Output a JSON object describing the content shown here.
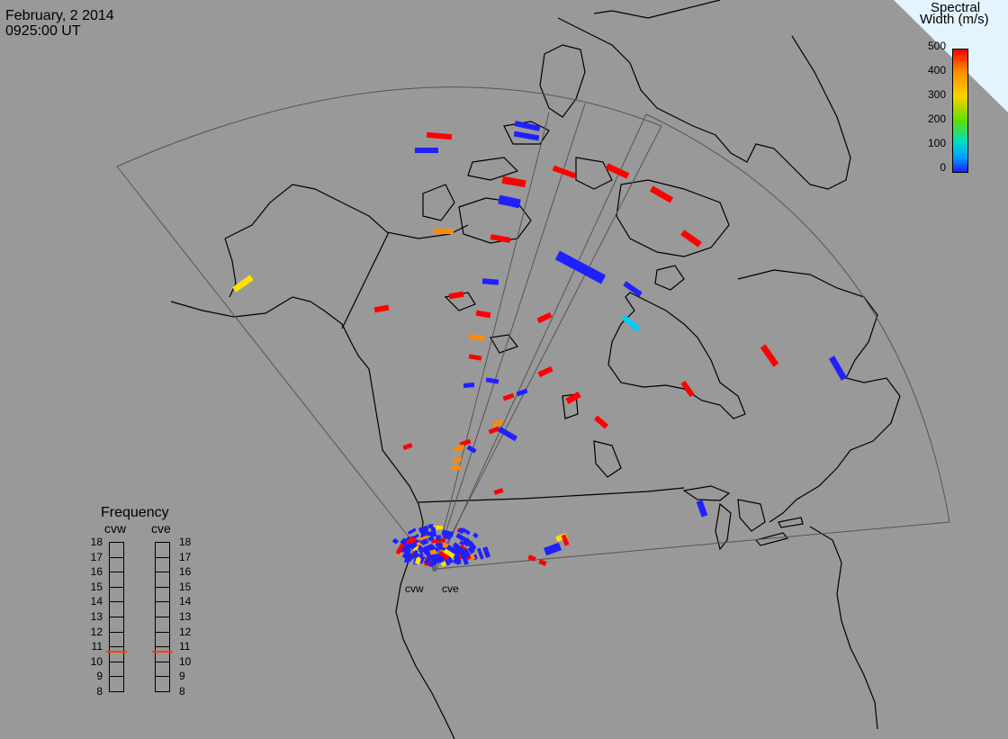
{
  "header": {
    "date": "February, 2 2014",
    "time": "0925:00 UT"
  },
  "colorbar": {
    "title_line1": "Spectral",
    "title_line2": "Width (m/s)",
    "ticks": [
      "500",
      "400",
      "300",
      "200",
      "100",
      "0"
    ],
    "range": [
      0,
      500
    ],
    "colors": [
      "#ff0000",
      "#ff8c00",
      "#ffd000",
      "#80e000",
      "#00d060",
      "#00d0ff",
      "#0040ff",
      "#2020ff"
    ]
  },
  "frequency_panel": {
    "title": "Frequency",
    "radars": [
      "cvw",
      "cve"
    ],
    "ticks": [
      "18",
      "17",
      "16",
      "15",
      "14",
      "13",
      "12",
      "11",
      "10",
      "9",
      "8"
    ],
    "marker_value_mhz": 10.8,
    "marker_color": "#ff4000"
  },
  "radars": [
    {
      "code": "cvw",
      "label": "cvw"
    },
    {
      "code": "cve",
      "label": "cve"
    }
  ],
  "colors": {
    "background": "#999999",
    "coast": "#000000",
    "fov": "#444444",
    "red": "#ff0000",
    "blue": "#2020ff",
    "orange": "#ff8c00",
    "yellow": "#ffe000",
    "cyan": "#00ccff",
    "corner": "#e0f4ff"
  }
}
